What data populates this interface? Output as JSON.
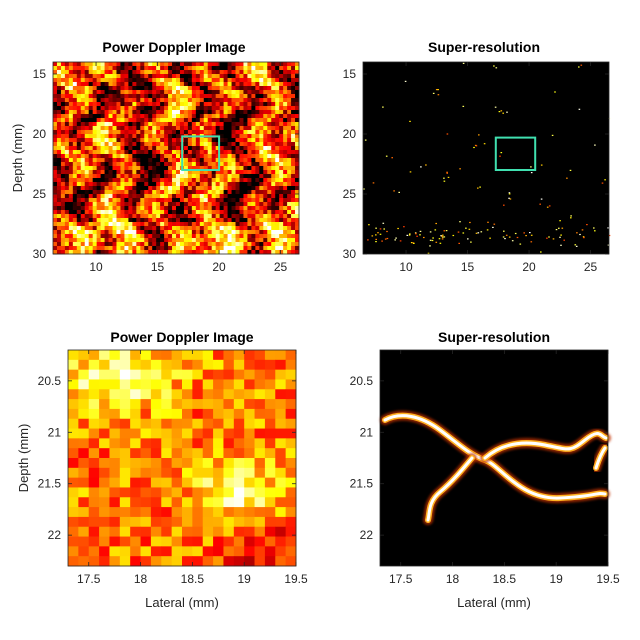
{
  "chart_data": [
    {
      "type": "heatmap",
      "title": "Power Doppler Image",
      "xlabel": "",
      "ylabel": "Depth (mm)",
      "xlim": [
        6.5,
        26.5
      ],
      "ylim": [
        30,
        14
      ],
      "xticks": [
        10,
        15,
        20,
        25
      ],
      "yticks": [
        15,
        20,
        25,
        30
      ],
      "colormap": "hot",
      "roi": {
        "x": [
          17,
          20
        ],
        "y": [
          20.2,
          23
        ],
        "color": "#40e0b0"
      }
    },
    {
      "type": "heatmap",
      "title": "Super-resolution",
      "xlabel": "",
      "ylabel": "",
      "xlim": [
        6.5,
        26.5
      ],
      "ylim": [
        30,
        14
      ],
      "xticks": [
        10,
        15,
        20,
        25
      ],
      "yticks": [
        15,
        20,
        25,
        30
      ],
      "colormap": "hot",
      "roi": {
        "x": [
          17.3,
          20.5
        ],
        "y": [
          20.3,
          23
        ],
        "color": "#40e0b0"
      }
    },
    {
      "type": "heatmap",
      "title": "Power Doppler Image",
      "xlabel": "Lateral (mm)",
      "ylabel": "Depth (mm)",
      "xlim": [
        17.3,
        19.5
      ],
      "ylim": [
        22.3,
        20.2
      ],
      "xticks": [
        17.5,
        18,
        18.5,
        19,
        19.5
      ],
      "yticks": [
        20.5,
        21,
        21.5,
        22
      ],
      "colormap": "hot"
    },
    {
      "type": "heatmap",
      "title": "Super-resolution",
      "xlabel": "Lateral (mm)",
      "ylabel": "",
      "xlim": [
        17.3,
        19.5
      ],
      "ylim": [
        22.3,
        20.2
      ],
      "xticks": [
        17.5,
        18,
        18.5,
        19,
        19.5
      ],
      "yticks": [
        20.5,
        21,
        21.5,
        22
      ],
      "colormap": "hot"
    }
  ]
}
